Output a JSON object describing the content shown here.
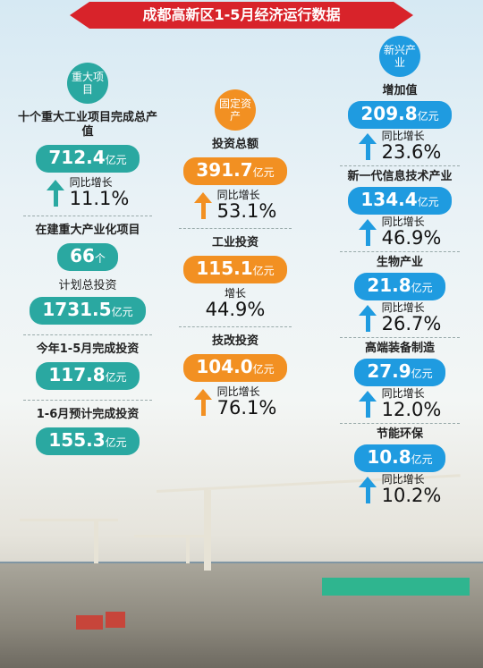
{
  "title": "成都高新区1-5月经济运行数据",
  "col1": {
    "header": "重大项目",
    "b1": {
      "label": "十个重大工业项目完成总产值",
      "value": "712.4",
      "unit": "亿元",
      "growth_label": "同比增长",
      "growth_value": "11.1%"
    },
    "b2": {
      "label": "在建重大产业化项目",
      "count": "66",
      "count_unit": "个",
      "sub": "计划总投资",
      "value": "1731.5",
      "unit": "亿元"
    },
    "b3": {
      "label": "今年1-5月完成投资",
      "value": "117.8",
      "unit": "亿元"
    },
    "b4": {
      "label": "1-6月预计完成投资",
      "value": "155.3",
      "unit": "亿元"
    }
  },
  "col2": {
    "header": "固定资产",
    "b1": {
      "label": "投资总额",
      "value": "391.7",
      "unit": "亿元",
      "growth_label": "同比增长",
      "growth_value": "53.1%"
    },
    "b2": {
      "label": "工业投资",
      "value": "115.1",
      "unit": "亿元",
      "growth_label": "增长",
      "growth_value": "44.9%"
    },
    "b3": {
      "label": "技改投资",
      "value": "104.0",
      "unit": "亿元",
      "growth_label": "同比增长",
      "growth_value": "76.1%"
    }
  },
  "col3": {
    "header": "新兴产业",
    "items": [
      {
        "label": "增加值",
        "value": "209.8",
        "unit": "亿元",
        "growth_label": "同比增长",
        "growth_value": "23.6%"
      },
      {
        "label": "新一代信息技术产业",
        "value": "134.4",
        "unit": "亿元",
        "growth_label": "同比增长",
        "growth_value": "46.9%"
      },
      {
        "label": "生物产业",
        "value": "21.8",
        "unit": "亿元",
        "growth_label": "同比增长",
        "growth_value": "26.7%"
      },
      {
        "label": "高端装备制造",
        "value": "27.9",
        "unit": "亿元",
        "growth_label": "同比增长",
        "growth_value": "12.0%"
      },
      {
        "label": "节能环保",
        "value": "10.8",
        "unit": "亿元",
        "growth_label": "同比增长",
        "growth_value": "10.2%"
      }
    ]
  },
  "colors": {
    "title": "#d8232a",
    "teal": "#2aa8a1",
    "orange": "#f29022",
    "blue": "#1f9be0"
  }
}
